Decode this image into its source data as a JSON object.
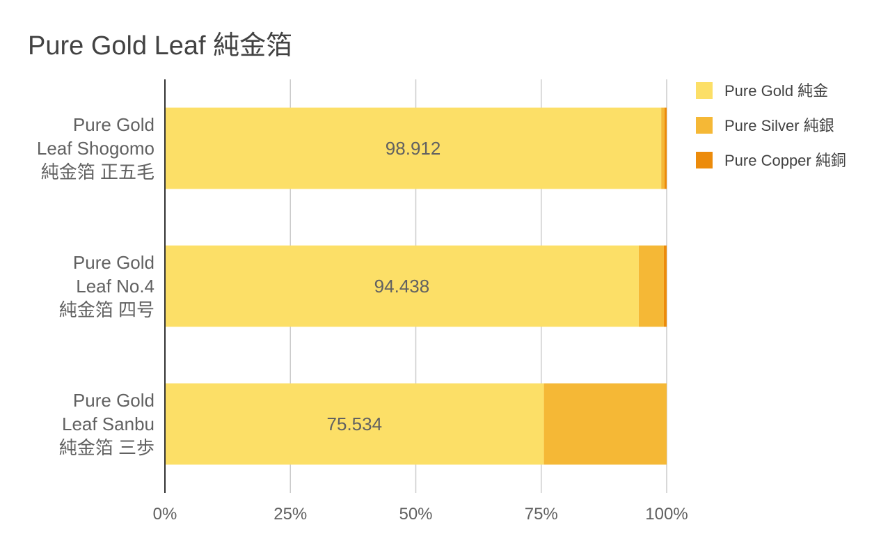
{
  "chart_data": {
    "type": "bar",
    "orientation": "horizontal",
    "stacking": "percent",
    "title": "Pure Gold Leaf   純金箔",
    "categories": [
      [
        "Pure Gold",
        "Leaf Shogomo",
        "純金箔 正五毛"
      ],
      [
        "Pure Gold",
        "Leaf No.4",
        "純金箔 四号"
      ],
      [
        "Pure Gold",
        "Leaf Sanbu",
        "純金箔 三歩"
      ]
    ],
    "series": [
      {
        "name": "Pure Gold 純金",
        "color": "#fcdf67",
        "values": [
          98.912,
          94.438,
          75.534
        ]
      },
      {
        "name": "Pure Silver 純銀",
        "color": "#f5b836",
        "values": [
          0.66,
          5.0,
          24.466
        ]
      },
      {
        "name": "Pure Copper 純銅",
        "color": "#ec8b0b",
        "values": [
          0.428,
          0.562,
          0
        ]
      }
    ],
    "data_labels": [
      "98.912",
      "94.438",
      "75.534"
    ],
    "x_ticks": [
      "0%",
      "25%",
      "50%",
      "75%",
      "100%"
    ],
    "xlim": [
      0,
      100
    ],
    "grid": true,
    "legend": "right"
  }
}
